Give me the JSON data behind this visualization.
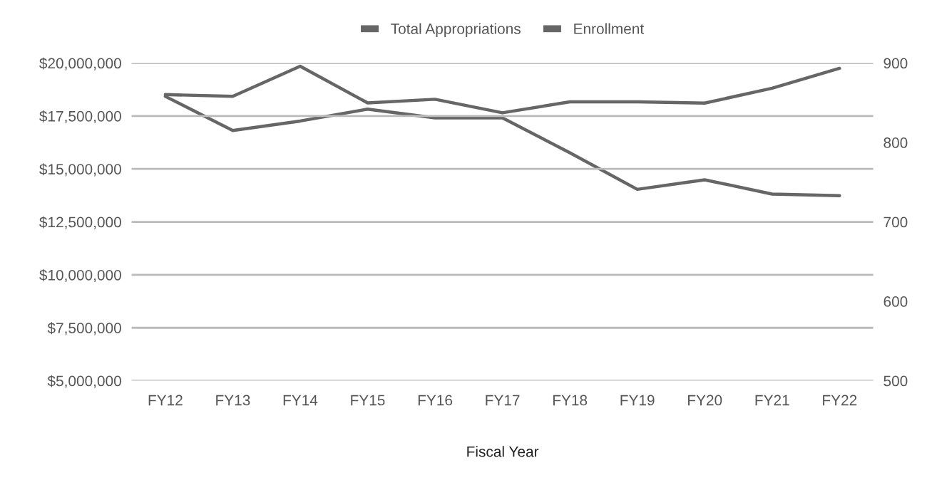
{
  "chart_data": {
    "type": "line",
    "xlabel": "Fiscal Year",
    "categories": [
      "FY12",
      "FY13",
      "FY14",
      "FY15",
      "FY16",
      "FY17",
      "FY18",
      "FY19",
      "FY20",
      "FY21",
      "FY22"
    ],
    "series": [
      {
        "name": "Total Appropriations",
        "color": "#666666",
        "values": [
          18510000,
          18430000,
          19850000,
          18120000,
          18290000,
          17650000,
          18170000,
          18170000,
          18110000,
          18810000,
          19750000
        ]
      },
      {
        "name": "Enrollment",
        "color": "#666666",
        "axis": "y2",
        "values": [
          858,
          815,
          827,
          842,
          831,
          831,
          787,
          741,
          753,
          735,
          733
        ]
      }
    ],
    "ylim": [
      5000000,
      20000000
    ],
    "yticks": [
      {
        "value": 5000000,
        "label": "$5,000,000"
      },
      {
        "value": 7500000,
        "label": "$7,500,000"
      },
      {
        "value": 10000000,
        "label": "$10,000,000"
      },
      {
        "value": 12500000,
        "label": "$12,500,000"
      },
      {
        "value": 15000000,
        "label": "$15,000,000"
      },
      {
        "value": 17500000,
        "label": "$17,500,000"
      },
      {
        "value": 20000000,
        "label": "$20,000,000"
      }
    ],
    "y2lim": [
      500,
      900
    ],
    "y2ticks": [
      500,
      600,
      700,
      800,
      900
    ],
    "grid": "y",
    "legend": "top",
    "marker": "none",
    "line_style": "solid"
  }
}
